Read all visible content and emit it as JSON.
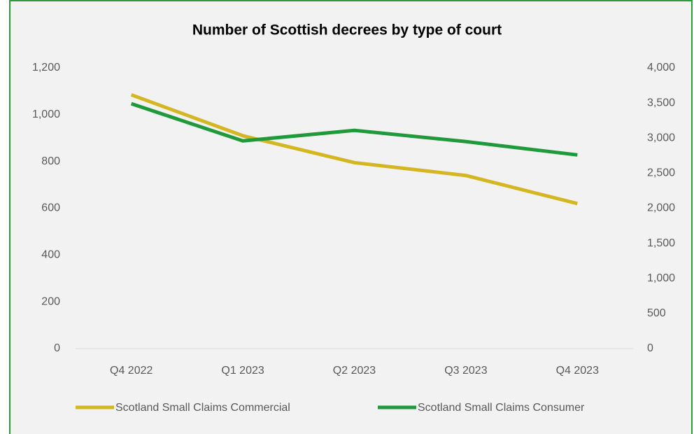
{
  "chart_data": {
    "type": "line",
    "title": "Number of Scottish decrees by type of court",
    "categories": [
      "Q4 2022",
      "Q1 2023",
      "Q2 2023",
      "Q3 2023",
      "Q4 2023"
    ],
    "series": [
      {
        "name": "Scotland Small Claims Commercial",
        "color": "#d4b623",
        "values": [
          1085,
          910,
          795,
          740,
          620
        ]
      },
      {
        "name": "Scotland Small Claims Consumer",
        "color": "#1e9a3a",
        "axis": "y2",
        "values": [
          3490,
          2960,
          3110,
          2950,
          2760
        ]
      }
    ],
    "ylim": [
      0,
      1200
    ],
    "yticks": [
      0,
      200,
      400,
      600,
      800,
      {
        "value": 1000,
        "label": "1,000"
      },
      {
        "value": 1200,
        "label": "1,200"
      }
    ],
    "y2lim": [
      0,
      4000
    ],
    "y2ticks": [
      0,
      500,
      {
        "value": 1000,
        "label": "1,000"
      },
      {
        "value": 1500,
        "label": "1,500"
      },
      {
        "value": 2000,
        "label": "2,000"
      },
      {
        "value": 2500,
        "label": "2,500"
      },
      {
        "value": 3000,
        "label": "3,000"
      },
      {
        "value": 3500,
        "label": "3,500"
      },
      {
        "value": 4000,
        "label": "4,000"
      }
    ],
    "legend": "bottom"
  }
}
